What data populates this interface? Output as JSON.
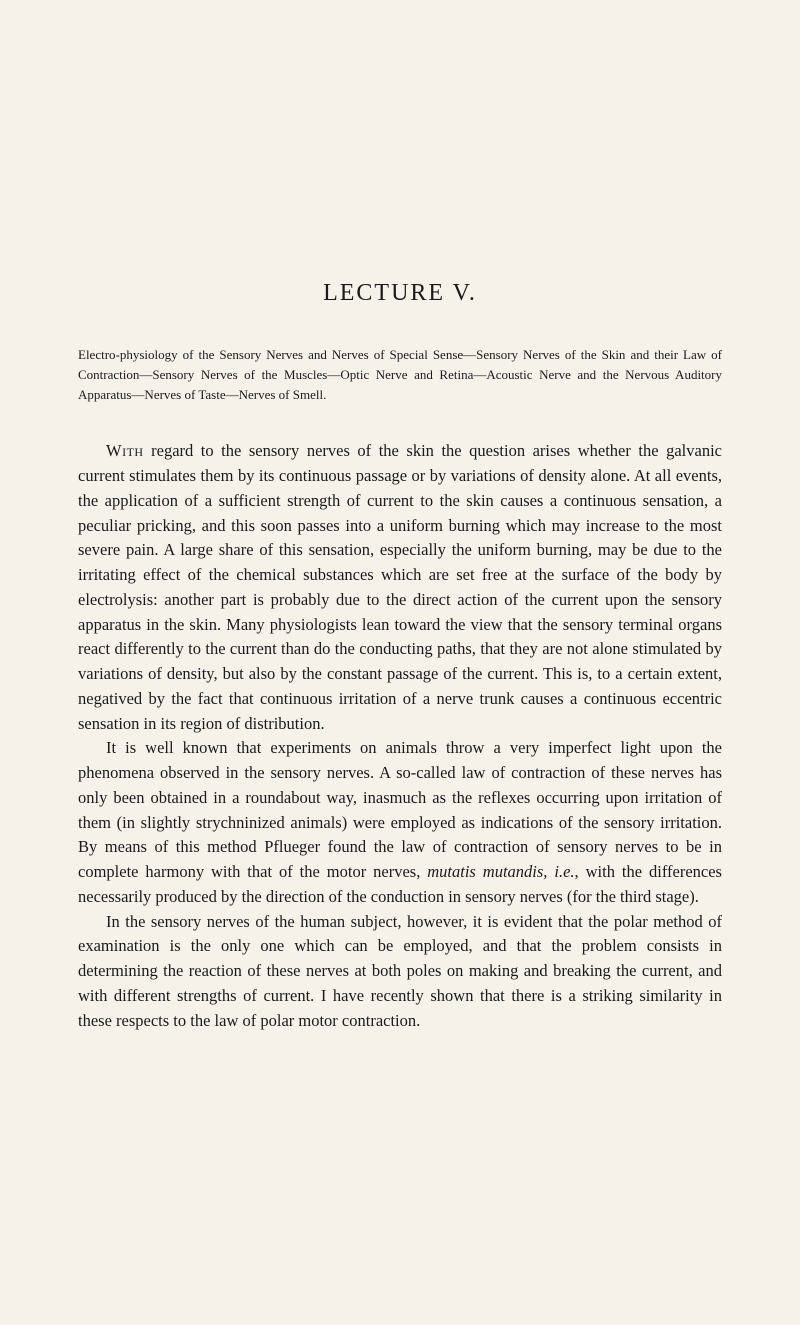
{
  "lecture": {
    "title": "LECTURE V."
  },
  "subtitle": {
    "text": "Electro-physiology of the Sensory Nerves and Nerves of Special Sense—Sensory Nerves of the Skin and their Law of Contraction—Sensory Nerves of the Muscles—Optic Nerve and Retina—Acoustic Nerve and the Nervous Auditory Apparatus—Nerves of Taste—Nerves of Smell."
  },
  "paragraphs": {
    "p1_lead": "With",
    "p1_rest": " regard to the sensory nerves of the skin the question arises whether the galvanic current stimulates them by its continuous passage or by variations of density alone. At all events, the application of a sufficient strength of current to the skin causes a continuous sensation, a peculiar pricking, and this soon passes into a uniform burning which may increase to the most severe pain. A large share of this sensation, especially the uniform burning, may be due to the irritating effect of the chemical substances which are set free at the surface of the body by electrolysis: another part is probably due to the direct action of the current upon the sensory apparatus in the skin. Many physiologists lean toward the view that the sensory terminal organs react differently to the current than do the conducting paths, that they are not alone stimulated by variations of density, but also by the constant passage of the current. This is, to a certain extent, negatived by the fact that continuous irritation of a nerve trunk causes a continuous eccentric sensation in its region of distribution.",
    "p2": "It is well known that experiments on animals throw a very imperfect light upon the phenomena observed in the sensory nerves. A so-called law of contraction of these nerves has only been obtained in a roundabout way, inasmuch as the reflexes occurring upon irritation of them (in slightly strychninized animals) were employed as indications of the sensory irritation. By means of this method Pflueger found the law of contraction of sensory nerves to be in complete harmony with that of the motor nerves, ",
    "p2_italic": "mutatis mutandis, i.e.",
    "p2_rest": ", with the differences necessarily produced by the direction of the conduction in sensory nerves (for the third stage).",
    "p3": "In the sensory nerves of the human subject, however, it is evident that the polar method of examination is the only one which can be employed, and that the problem consists in determining the reaction of these nerves at both poles on making and breaking the current, and with different strengths of current. I have recently shown that there is a striking similarity in these respects to the law of polar motor contraction."
  },
  "styling": {
    "background_color": "#f5f2ea",
    "text_color": "#1a1a1a",
    "title_fontsize": 24,
    "subtitle_fontsize": 13,
    "body_fontsize": 16.5,
    "line_height": 1.5,
    "text_indent": 28
  }
}
